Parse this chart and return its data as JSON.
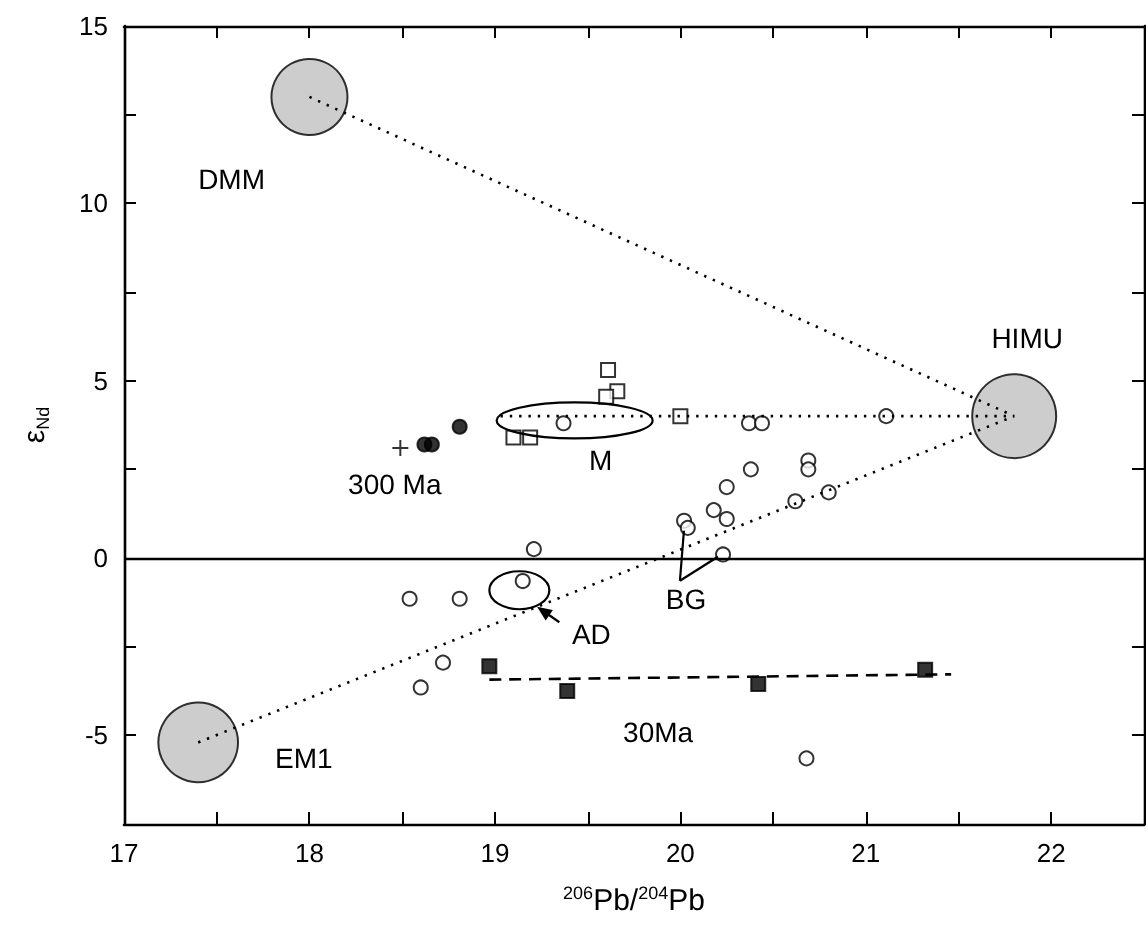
{
  "chart_data": {
    "type": "scatter",
    "xlabel": "$^{206}$Pb/$^{204}$Pb",
    "ylabel": "ε$_{Nd}$",
    "xlim": [
      17,
      22.5
    ],
    "ylim": [
      -7.5,
      15
    ],
    "xticks": [
      17,
      {
        "value": 17.5,
        "label": null
      },
      18,
      {
        "value": 18.5,
        "label": null
      },
      19,
      {
        "value": 19.5,
        "label": null
      },
      20,
      {
        "value": 20.5,
        "label": null
      },
      21,
      {
        "value": 21.5,
        "label": null
      },
      22
    ],
    "yticks": [
      -5,
      {
        "value": -2.5,
        "label": null
      },
      0,
      {
        "value": 2.5,
        "label": null
      },
      5,
      {
        "value": 7.5,
        "label": null
      },
      10,
      {
        "value": 12.5,
        "label": null
      },
      15
    ],
    "grid": false,
    "ref_lines": [
      {
        "axis": "y",
        "value": 0,
        "color": "#000000",
        "line_style": "solid"
      }
    ],
    "series": [
      {
        "type": "line",
        "color": "#000000",
        "line_style": "dotted",
        "marker": "none",
        "x": [
          18,
          21.8
        ],
        "values": [
          13,
          4
        ]
      },
      {
        "type": "line",
        "color": "#000000",
        "line_style": "dotted",
        "marker": "none",
        "x": [
          17.4,
          21.8
        ],
        "values": [
          -5.2,
          4
        ]
      },
      {
        "type": "line",
        "color": "#000000",
        "line_style": "dotted",
        "marker": "none",
        "x": [
          19.03,
          21.8
        ],
        "values": [
          4,
          4
        ]
      },
      {
        "type": "line",
        "color": "#000000",
        "line_style": "dashed",
        "marker": "none",
        "x": [
          18.97,
          21.46
        ],
        "values": [
          -3.43,
          -3.28
        ]
      },
      {
        "type": "bubble",
        "color": "#c0c0c0",
        "marker": "circle",
        "x": [
          18,
          21.8,
          17.4
        ],
        "values": [
          13,
          4,
          -5.2
        ],
        "sizes": [
          0.82,
          1,
          0.9
        ]
      },
      {
        "color": "#ffffff",
        "marker": "circle",
        "x": [
          19.37,
          20.37,
          20.44,
          21.11,
          20.38,
          20.69,
          20.69,
          20.25,
          20.18,
          20.25,
          20.02,
          20.04,
          20.62,
          20.8,
          20.23,
          19.21,
          19.15,
          18.54,
          18.81,
          18.72,
          18.6
        ],
        "values": [
          3.8,
          3.8,
          3.8,
          4,
          2.5,
          2.75,
          2.5,
          2,
          1.35,
          1.1,
          1.05,
          0.85,
          1.6,
          1.85,
          0.1,
          0.25,
          -0.65,
          -1.15,
          -1.15,
          -2.95,
          -3.65
        ]
      },
      {
        "color": "#ffffff",
        "marker": "square",
        "x": [
          19.61,
          19.66,
          19.6,
          19.1,
          19.19,
          20
        ],
        "values": [
          5.3,
          4.7,
          4.55,
          3.4,
          3.4,
          4
        ]
      },
      {
        "color": "#000000",
        "marker": "circle",
        "x": [
          18.62,
          18.66,
          18.81
        ],
        "values": [
          3.2,
          3.2,
          3.7
        ]
      },
      {
        "color": "#000000",
        "marker": "cross",
        "x": [
          18.49
        ],
        "values": [
          3.1
        ]
      },
      {
        "color": "#000000",
        "marker": "square",
        "x": [
          18.97,
          19.39,
          20.42,
          21.32
        ],
        "values": [
          -3.05,
          -3.75,
          -3.55,
          -3.15
        ]
      },
      {
        "color": "#ffffff",
        "marker": "circle",
        "x": [
          20.68
        ],
        "values": [
          -5.65
        ]
      }
    ],
    "annotations": [
      "DMM",
      "HIMU",
      "M",
      "300 Ma",
      "AD",
      "BG",
      "EM1",
      "30Ma"
    ]
  }
}
